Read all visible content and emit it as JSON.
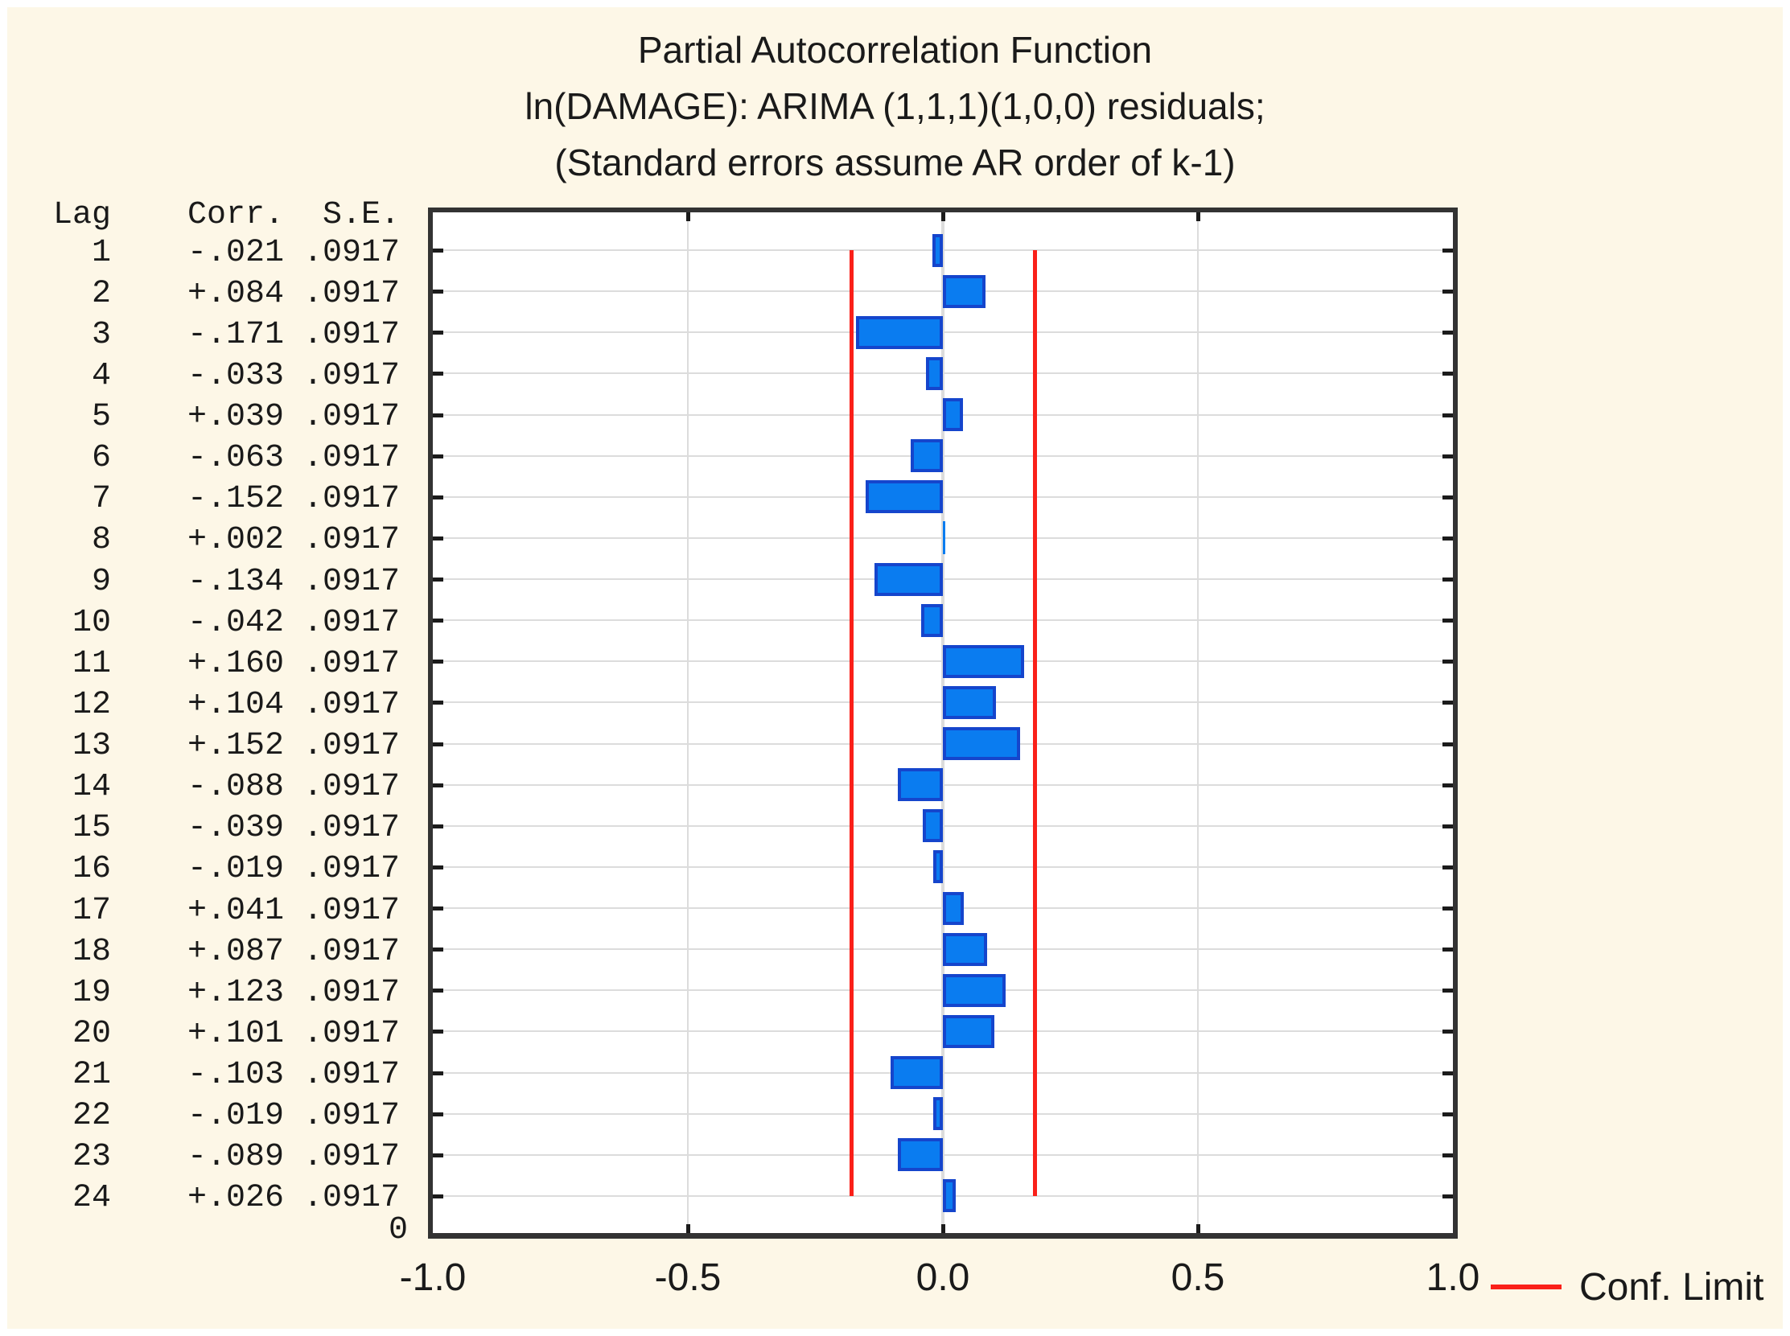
{
  "chart_data": {
    "type": "bar",
    "orientation": "horizontal",
    "title": "Partial Autocorrelation Function",
    "subtitle": "ln(DAMAGE): ARIMA (1,1,1)(1,0,0) residuals;",
    "note": "(Standard errors assume AR order of k-1)",
    "xlim": [
      -1.0,
      1.0
    ],
    "grid": true,
    "x_ticks": [
      {
        "label": "-1.0",
        "value": -1.0
      },
      {
        "label": "-0.5",
        "value": -0.5
      },
      {
        "label": "0.0",
        "value": 0.0
      },
      {
        "label": "0.5",
        "value": 0.5
      },
      {
        "label": "1.0",
        "value": 1.0
      }
    ],
    "y_origin_label": "0",
    "conf_limit": 0.18,
    "legend": {
      "label": "Conf. Limit",
      "position": "bottom-right"
    },
    "table_headers": {
      "lag": "Lag",
      "corr": "Corr.",
      "se": "S.E."
    },
    "rows": [
      {
        "lag": "1",
        "corr": "-.021",
        "se": ".0917",
        "value": -0.021
      },
      {
        "lag": "2",
        "corr": "+.084",
        "se": ".0917",
        "value": 0.084
      },
      {
        "lag": "3",
        "corr": "-.171",
        "se": ".0917",
        "value": -0.171
      },
      {
        "lag": "4",
        "corr": "-.033",
        "se": ".0917",
        "value": -0.033
      },
      {
        "lag": "5",
        "corr": "+.039",
        "se": ".0917",
        "value": 0.039
      },
      {
        "lag": "6",
        "corr": "-.063",
        "se": ".0917",
        "value": -0.063
      },
      {
        "lag": "7",
        "corr": "-.152",
        "se": ".0917",
        "value": -0.152
      },
      {
        "lag": "8",
        "corr": "+.002",
        "se": ".0917",
        "value": 0.002
      },
      {
        "lag": "9",
        "corr": "-.134",
        "se": ".0917",
        "value": -0.134
      },
      {
        "lag": "10",
        "corr": "-.042",
        "se": ".0917",
        "value": -0.042
      },
      {
        "lag": "11",
        "corr": "+.160",
        "se": ".0917",
        "value": 0.16
      },
      {
        "lag": "12",
        "corr": "+.104",
        "se": ".0917",
        "value": 0.104
      },
      {
        "lag": "13",
        "corr": "+.152",
        "se": ".0917",
        "value": 0.152
      },
      {
        "lag": "14",
        "corr": "-.088",
        "se": ".0917",
        "value": -0.088
      },
      {
        "lag": "15",
        "corr": "-.039",
        "se": ".0917",
        "value": -0.039
      },
      {
        "lag": "16",
        "corr": "-.019",
        "se": ".0917",
        "value": -0.019
      },
      {
        "lag": "17",
        "corr": "+.041",
        "se": ".0917",
        "value": 0.041
      },
      {
        "lag": "18",
        "corr": "+.087",
        "se": ".0917",
        "value": 0.087
      },
      {
        "lag": "19",
        "corr": "+.123",
        "se": ".0917",
        "value": 0.123
      },
      {
        "lag": "20",
        "corr": "+.101",
        "se": ".0917",
        "value": 0.101
      },
      {
        "lag": "21",
        "corr": "-.103",
        "se": ".0917",
        "value": -0.103
      },
      {
        "lag": "22",
        "corr": "-.019",
        "se": ".0917",
        "value": -0.019
      },
      {
        "lag": "23",
        "corr": "-.089",
        "se": ".0917",
        "value": -0.089
      },
      {
        "lag": "24",
        "corr": "+.026",
        "se": ".0917",
        "value": 0.026
      }
    ],
    "colors": {
      "background": "#fdf7e7",
      "plot_border": "#333333",
      "gridline": "#dcdcdc",
      "zero_line": "#dcdcdc",
      "bar_fill": "#0a7cf0",
      "bar_border": "#1545cc",
      "conf_line": "#fa2019",
      "text": "#1a1a1a"
    }
  }
}
